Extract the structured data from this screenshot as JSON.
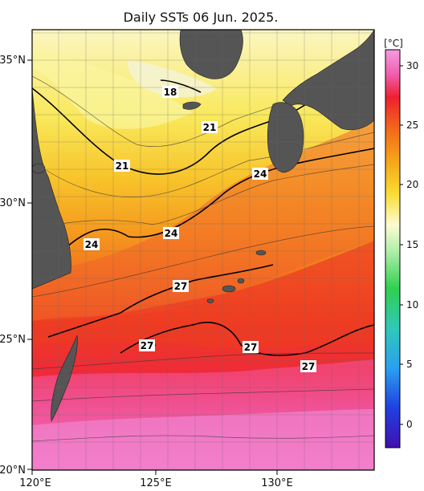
{
  "title": "Daily SSTs 06 Jun. 2025.",
  "colorbar": {
    "unit": "[°C]",
    "ticks": [
      "30",
      "25",
      "20",
      "15",
      "10",
      "5",
      "0"
    ]
  },
  "axes": {
    "lat_labels": [
      "35°N",
      "30°N",
      "25°N",
      "20°N"
    ],
    "lon_labels": [
      "120°E",
      "125°E",
      "130°E"
    ]
  },
  "contour_labels": [
    "18",
    "21",
    "21",
    "24",
    "24",
    "24",
    "27",
    "27",
    "27",
    "27"
  ],
  "colors": {
    "land": "#555555",
    "sst_18": "#f6f3b0",
    "sst_21": "#f8df3a",
    "sst_24": "#f5a21c",
    "sst_27": "#ef3322",
    "sst_29": "#f07fc8"
  }
}
